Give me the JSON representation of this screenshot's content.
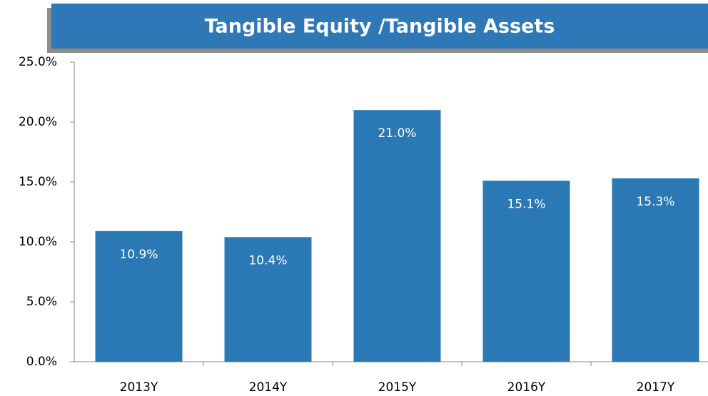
{
  "chart_data": {
    "type": "bar",
    "title": "Tangible Equity /Tangible Assets",
    "categories": [
      "2013Y",
      "2014Y",
      "2015Y",
      "2016Y",
      "2017Y"
    ],
    "values": [
      10.9,
      10.4,
      21.0,
      15.1,
      15.3
    ],
    "value_labels": [
      "10.9%",
      "10.4%",
      "21.0%",
      "15.1%",
      "15.3%"
    ],
    "color": "#2a79b5",
    "ylim": [
      0,
      25
    ],
    "yticks": [
      {
        "value": 0,
        "label": "0.0%"
      },
      {
        "value": 5,
        "label": "5.0%"
      },
      {
        "value": 10,
        "label": "10.0%"
      },
      {
        "value": 15,
        "label": "15.0%"
      },
      {
        "value": 20,
        "label": "20.0%"
      },
      {
        "value": 25,
        "label": "25.0%"
      }
    ],
    "grid": false
  }
}
